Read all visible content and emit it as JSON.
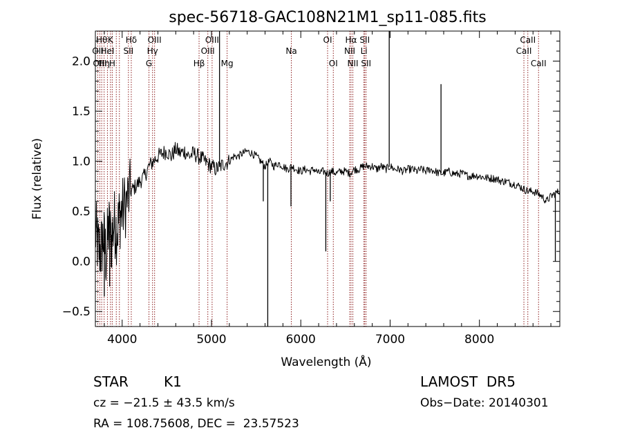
{
  "chart_data": {
    "type": "line",
    "title": "spec-56718-GAC108N21M1_sp11-085.fits",
    "xlabel": "Wavelength (Å)",
    "ylabel": "Flux (relative)",
    "xlim": [
      3700,
      8900
    ],
    "ylim": [
      -0.65,
      2.3
    ],
    "x_ticks": [
      4000,
      5000,
      6000,
      7000,
      8000
    ],
    "x_tick_labels": [
      "4000",
      "5000",
      "6000",
      "7000",
      "8000"
    ],
    "y_ticks": [
      -0.5,
      0.0,
      0.5,
      1.0,
      1.5,
      2.0
    ],
    "y_tick_labels": [
      "−0.5",
      "0.0",
      "0.5",
      "1.0",
      "1.5",
      "2.0"
    ],
    "series": [
      {
        "x": [
          3700,
          3730,
          3760,
          3790,
          3820,
          3850,
          3880,
          3910,
          3940,
          3970,
          4000,
          4050,
          4100,
          4150,
          4200,
          4250,
          4300,
          4350,
          4400,
          4450,
          4500,
          4550,
          4600,
          4650,
          4700,
          4750,
          4800,
          4850,
          4900,
          4950,
          5000,
          5050,
          5100,
          5150,
          5200,
          5250,
          5300,
          5350,
          5400,
          5450,
          5500,
          5550,
          5600,
          5650,
          5700,
          5750,
          5800,
          5850,
          5900,
          5950,
          6000,
          6050,
          6100,
          6150,
          6200,
          6250,
          6300,
          6350,
          6400,
          6450,
          6500,
          6550,
          6600,
          6650,
          6700,
          6750,
          6800,
          6850,
          6900,
          6950,
          7000,
          7050,
          7100,
          7150,
          7200,
          7250,
          7300,
          7350,
          7400,
          7450,
          7500,
          7550,
          7600,
          7650,
          7700,
          7750,
          7800,
          7850,
          7900,
          7950,
          8000,
          8050,
          8100,
          8150,
          8200,
          8250,
          8300,
          8350,
          8400,
          8450,
          8500,
          8550,
          8600,
          8650,
          8700,
          8750,
          8800,
          8850,
          8900
        ],
        "y": [
          0.3,
          0.15,
          0.1,
          0.25,
          0.05,
          0.35,
          0.2,
          0.4,
          0.3,
          0.45,
          0.5,
          0.6,
          0.7,
          0.75,
          0.8,
          0.85,
          0.95,
          1.0,
          1.05,
          1.08,
          1.1,
          1.05,
          1.12,
          1.08,
          1.1,
          1.05,
          1.08,
          1.05,
          1.02,
          0.98,
          0.95,
          0.92,
          0.95,
          0.98,
          1.0,
          1.05,
          1.05,
          1.08,
          1.1,
          1.08,
          1.05,
          1.0,
          0.95,
          1.0,
          0.95,
          0.98,
          0.95,
          0.92,
          0.95,
          0.92,
          0.9,
          0.92,
          0.9,
          0.92,
          0.88,
          0.9,
          0.88,
          0.9,
          0.88,
          0.9,
          0.9,
          0.88,
          0.92,
          0.92,
          0.95,
          0.95,
          0.95,
          0.92,
          0.95,
          0.92,
          0.95,
          0.92,
          0.92,
          0.9,
          0.92,
          0.92,
          0.9,
          0.92,
          0.9,
          0.92,
          0.9,
          0.88,
          0.88,
          0.9,
          0.88,
          0.87,
          0.88,
          0.86,
          0.85,
          0.86,
          0.85,
          0.84,
          0.83,
          0.83,
          0.82,
          0.8,
          0.8,
          0.78,
          0.77,
          0.75,
          0.72,
          0.7,
          0.7,
          0.68,
          0.65,
          0.6,
          0.65,
          0.68,
          0.7
        ]
      }
    ],
    "features": [
      {
        "x": 5630,
        "y": -0.65
      },
      {
        "x": 5580,
        "y": 0.6
      },
      {
        "x": 5890,
        "y": 0.55
      },
      {
        "x": 6280,
        "y": 0.1
      },
      {
        "x": 6330,
        "y": 0.6
      },
      {
        "x": 5090,
        "y": 2.3
      },
      {
        "x": 6990,
        "y": 2.3
      },
      {
        "x": 7570,
        "y": 1.77
      },
      {
        "x": 8850,
        "y": 0.0
      },
      {
        "x": 3800,
        "y": -0.35
      },
      {
        "x": 3860,
        "y": -0.25
      }
    ],
    "grid": false,
    "line_color": "#000000",
    "marker_color": "#8b1a1a",
    "line_markers": [
      {
        "x": 3727,
        "labels": [
          {
            "text": "OII",
            "row": 2
          }
        ]
      },
      {
        "x": 3750,
        "labels": [
          {
            "text": "OIII",
            "row": 3
          }
        ]
      },
      {
        "x": 3771,
        "labels": [
          {
            "text": "Hθ",
            "row": 1
          }
        ]
      },
      {
        "x": 3798,
        "labels": [
          {
            "text": "Hη",
            "row": 3
          }
        ]
      },
      {
        "x": 3835,
        "labels": [
          {
            "text": "HeI",
            "row": 2
          }
        ]
      },
      {
        "x": 3869,
        "labels": [
          {
            "text": "K",
            "row": 1
          }
        ]
      },
      {
        "x": 3889,
        "labels": [
          {
            "text": "H",
            "row": 3
          }
        ]
      },
      {
        "x": 3934,
        "labels": []
      },
      {
        "x": 3969,
        "labels": []
      },
      {
        "x": 4070,
        "labels": [
          {
            "text": "SII",
            "row": 2
          }
        ]
      },
      {
        "x": 4102,
        "labels": [
          {
            "text": "Hδ",
            "row": 1
          }
        ]
      },
      {
        "x": 4300,
        "labels": [
          {
            "text": "G",
            "row": 3
          }
        ]
      },
      {
        "x": 4340,
        "labels": [
          {
            "text": "Hγ",
            "row": 2
          }
        ]
      },
      {
        "x": 4363,
        "labels": [
          {
            "text": "OIII",
            "row": 1
          }
        ]
      },
      {
        "x": 4861,
        "labels": [
          {
            "text": "Hβ",
            "row": 3
          }
        ]
      },
      {
        "x": 4959,
        "labels": [
          {
            "text": "OIII",
            "row": 2
          }
        ]
      },
      {
        "x": 5007,
        "labels": [
          {
            "text": "OIII",
            "row": 1
          }
        ]
      },
      {
        "x": 5175,
        "labels": [
          {
            "text": "Mg",
            "row": 3
          }
        ]
      },
      {
        "x": 5894,
        "labels": [
          {
            "text": "Na",
            "row": 2
          }
        ]
      },
      {
        "x": 6300,
        "labels": [
          {
            "text": "OI",
            "row": 1
          }
        ]
      },
      {
        "x": 6364,
        "labels": [
          {
            "text": "OI",
            "row": 3
          }
        ]
      },
      {
        "x": 6548,
        "labels": [
          {
            "text": "NII",
            "row": 2
          }
        ]
      },
      {
        "x": 6563,
        "labels": [
          {
            "text": "Hα",
            "row": 1
          }
        ]
      },
      {
        "x": 6583,
        "labels": [
          {
            "text": "NII",
            "row": 3
          }
        ]
      },
      {
        "x": 6707,
        "labels": [
          {
            "text": "Li",
            "row": 2
          }
        ]
      },
      {
        "x": 6716,
        "labels": [
          {
            "text": "SII",
            "row": 1
          }
        ]
      },
      {
        "x": 6731,
        "labels": [
          {
            "text": "SII",
            "row": 3
          }
        ]
      },
      {
        "x": 8498,
        "labels": [
          {
            "text": "CaII",
            "row": 2
          }
        ]
      },
      {
        "x": 8542,
        "labels": [
          {
            "text": "CaII",
            "row": 1
          }
        ]
      },
      {
        "x": 8662,
        "labels": [
          {
            "text": "CaII",
            "row": 3
          }
        ]
      }
    ]
  },
  "info": {
    "object_class": "STAR",
    "subclass": "K1",
    "survey": "LAMOST  DR5",
    "velocity": "cz = −21.5 ± 43.5 km/s",
    "obs_date": "Obs−Date: 20140301",
    "coords": "RA = 108.75608, DEC =  23.57523"
  }
}
